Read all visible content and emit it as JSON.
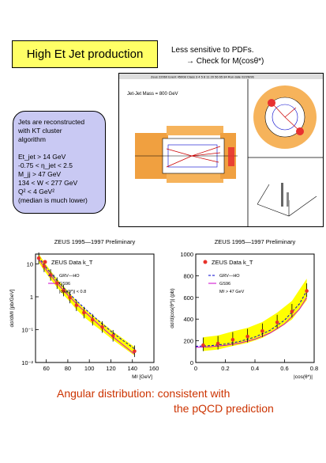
{
  "header": {
    "title": "High Et Jet production",
    "note_line1": "Less sensitive to PDFs.",
    "note_line2": "→ Check for M(cosθ*)"
  },
  "event_display": {
    "top_text": "Zeus 22060   Event 45008   Class 3 4 5 8 11 20 56 65 84   Run date 02/26/96",
    "mass_label": "Jet-Jet Mass = 800 GeV"
  },
  "callout": {
    "lines": [
      "Jets are reconstructed",
      "with KT cluster",
      "algorithm",
      "",
      "Et_jet > 14 GeV",
      "-0.75 < η_jet < 2.5",
      "M_jj > 47 GeV",
      "134 < W < 277 GeV",
      "Q² < 4 GeV²",
      "(median is much lower)"
    ]
  },
  "conclusion": {
    "line1": "Angular distribution: consistent with",
    "line2": "the pQCD prediction"
  },
  "colors": {
    "title_bg": "#ffff66",
    "callout_bg": "#c9c9f3",
    "band": "#ffff00",
    "data": "#e8322a",
    "conclusion": "#cc3300"
  },
  "chart_data": [
    {
      "type": "line",
      "title": "ZEUS 1995—1997  Preliminary",
      "xlabel": "Mʲʲ [GeV]",
      "ylabel": "dσ/dMʲʲ [pb/GeV]",
      "xlim": [
        50,
        160
      ],
      "ylim": [
        0.01,
        20
      ],
      "log_y": true,
      "xticks": [
        60,
        80,
        100,
        120,
        140,
        160
      ],
      "yticks": [
        {
          "v": 0.01,
          "label": "10⁻²"
        },
        {
          "v": 0.1,
          "label": "10⁻¹"
        },
        {
          "v": 1,
          "label": "1"
        },
        {
          "v": 10,
          "label": "10"
        }
      ],
      "legend": [
        "ZEUS Data k_T",
        "GRV—HO",
        "GS96",
        "|cos(θ*)| < 0.8"
      ],
      "series": [
        {
          "name": "ZEUS Data k_T",
          "x": [
            53,
            58,
            64,
            70,
            76,
            82,
            88,
            95,
            103,
            112,
            122,
            142
          ],
          "y": [
            15,
            8.5,
            4.6,
            2.6,
            1.55,
            0.95,
            0.55,
            0.33,
            0.2,
            0.12,
            0.065,
            0.022
          ]
        },
        {
          "name": "GRV—HO",
          "x": [
            53,
            60,
            70,
            80,
            90,
            100,
            110,
            120,
            130,
            142
          ],
          "y": [
            16,
            7.8,
            3.1,
            1.38,
            0.66,
            0.33,
            0.17,
            0.09,
            0.05,
            0.026
          ]
        },
        {
          "name": "GS96",
          "x": [
            53,
            60,
            70,
            80,
            90,
            100,
            110,
            120,
            130,
            142
          ],
          "y": [
            14,
            6.6,
            2.6,
            1.14,
            0.53,
            0.26,
            0.13,
            0.068,
            0.037,
            0.018
          ]
        }
      ]
    },
    {
      "type": "line",
      "title": "ZEUS 1995—1997  Preliminary",
      "xlabel": "|cos(θ*)|",
      "ylabel": "dσ/d|cos(θ*)| (pb)",
      "xlim": [
        0,
        0.8
      ],
      "ylim": [
        0,
        1000
      ],
      "xticks": [
        0,
        0.2,
        0.4,
        0.6,
        0.8
      ],
      "yticks": [
        0,
        200,
        400,
        600,
        800,
        1000
      ],
      "legend": [
        "ZEUS Data k_T",
        "GRV—HO",
        "GS96",
        "Mʲʲ > 47 GeV"
      ],
      "series": [
        {
          "name": "ZEUS Data k_T",
          "x": [
            0.05,
            0.15,
            0.25,
            0.35,
            0.45,
            0.55,
            0.65,
            0.75
          ],
          "y": [
            160,
            175,
            210,
            240,
            290,
            370,
            470,
            660
          ]
        },
        {
          "name": "GRV—HO",
          "x": [
            0,
            0.1,
            0.2,
            0.3,
            0.4,
            0.5,
            0.6,
            0.7,
            0.75
          ],
          "y": [
            150,
            155,
            170,
            195,
            235,
            295,
            390,
            540,
            660
          ]
        },
        {
          "name": "GS96",
          "x": [
            0,
            0.1,
            0.2,
            0.3,
            0.4,
            0.5,
            0.6,
            0.7,
            0.75
          ],
          "y": [
            140,
            145,
            158,
            180,
            215,
            270,
            355,
            490,
            600
          ]
        }
      ]
    }
  ]
}
